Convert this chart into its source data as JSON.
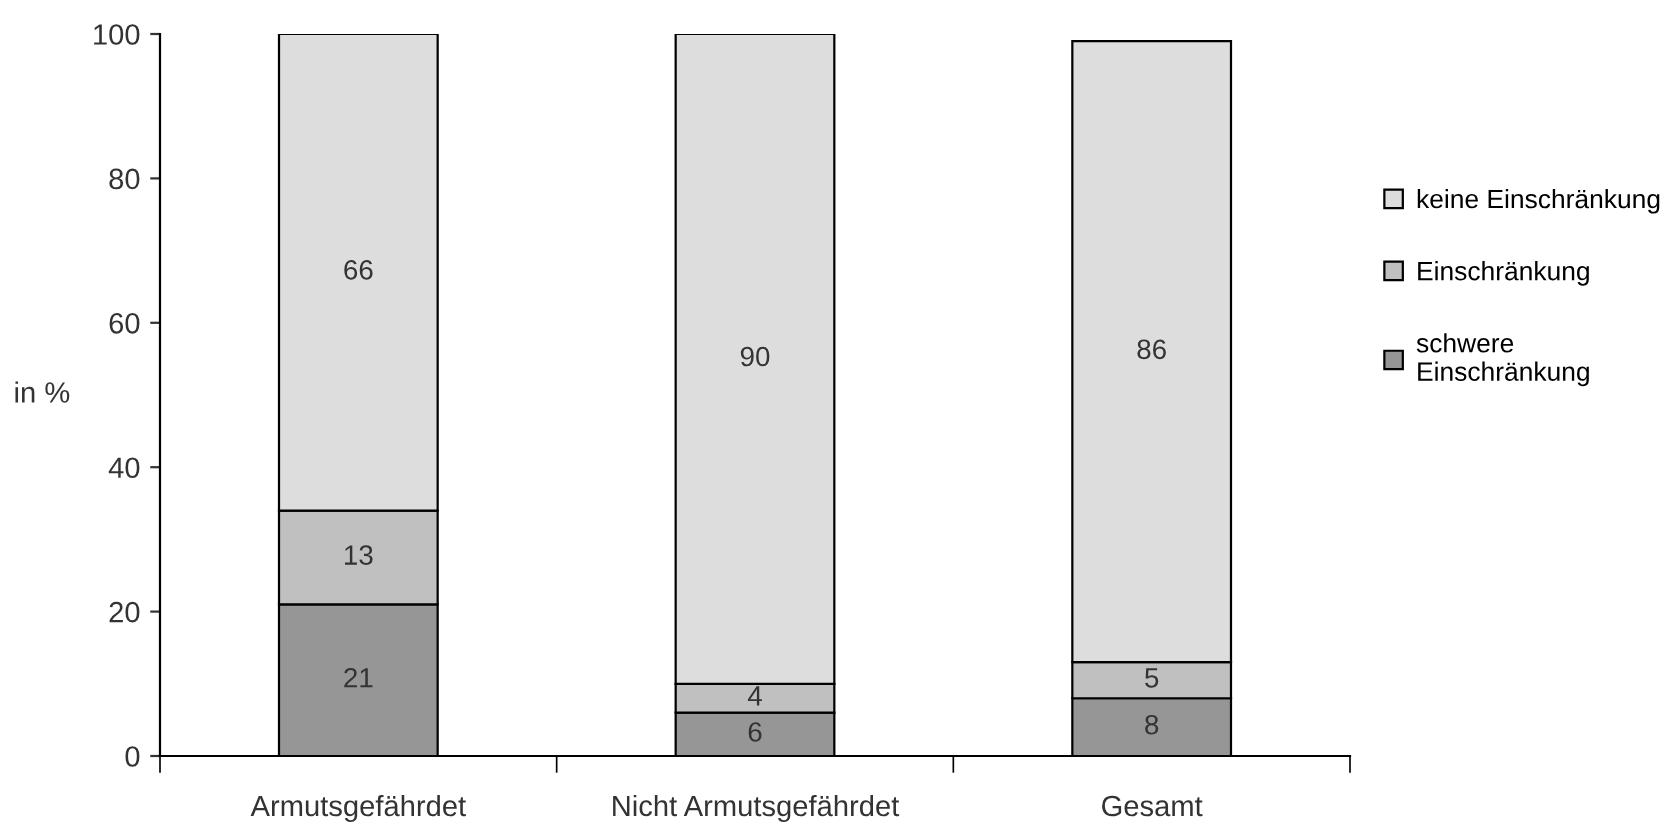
{
  "chart_data": {
    "type": "bar",
    "stacked": true,
    "ylabel": "in %",
    "categories": [
      "Armutsgefährdet",
      "Nicht Armutsgefährdet",
      "Gesamt"
    ],
    "series": [
      {
        "name": "schwere\nEinschränkung",
        "color": "#969696",
        "values": [
          21,
          6,
          8
        ]
      },
      {
        "name": "Einschränkung",
        "color": "#c0c0c0",
        "values": [
          13,
          4,
          5
        ]
      },
      {
        "name": "keine Einschränkung",
        "color": "#dddddd",
        "values": [
          66,
          90,
          86
        ]
      }
    ],
    "ylim": [
      0,
      100
    ],
    "yticks": [
      0,
      20,
      40,
      60,
      80,
      100
    ],
    "data_labels": true,
    "grid": false,
    "legend": "right"
  }
}
